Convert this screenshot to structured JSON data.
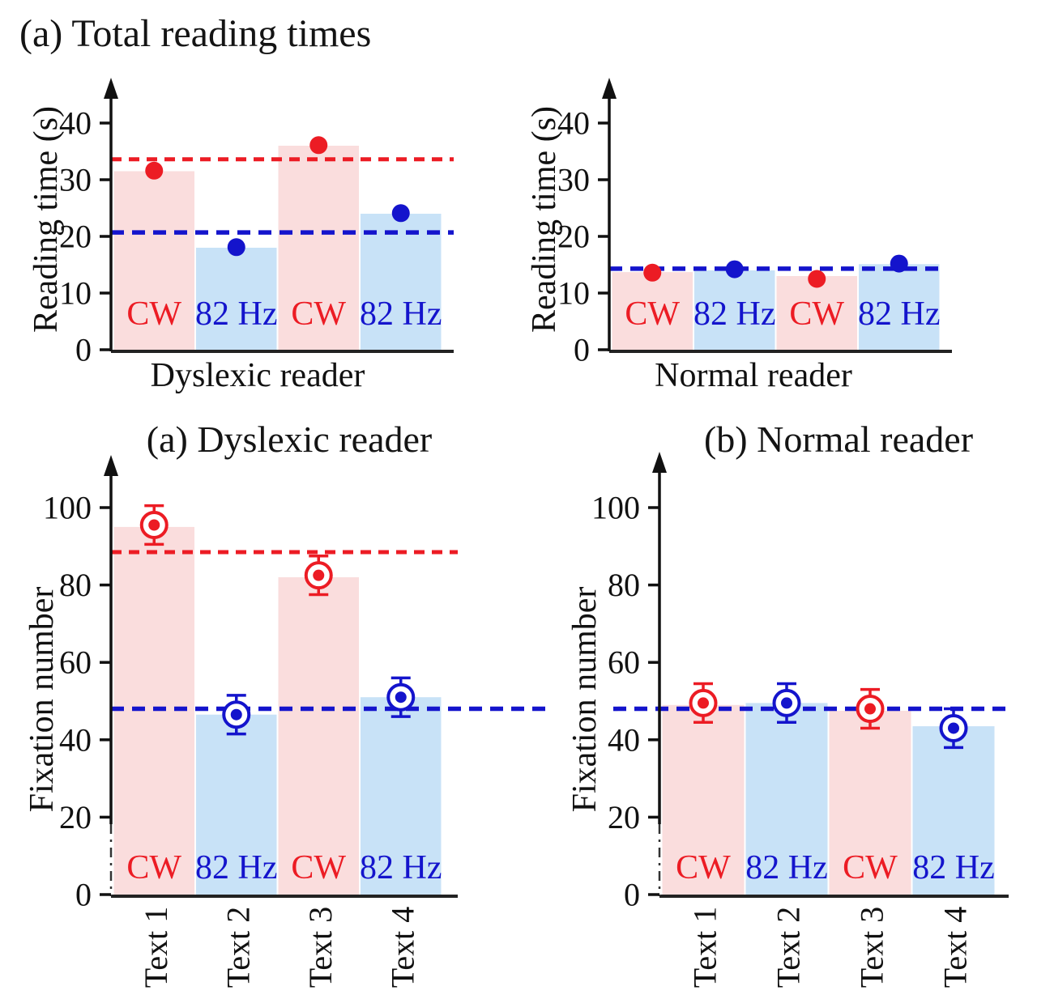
{
  "figure_title": "(a) Total reading times",
  "colors": {
    "red": "#ec1c24",
    "blue": "#1414cc",
    "pink_fill": "#fadddd",
    "blue_fill": "#c8e2f7",
    "axis": "#1a1a1a"
  },
  "chart_data": [
    {
      "id": "reading-time-dyslexic",
      "type": "bar",
      "title": "",
      "xlabel": "Dyslexic reader",
      "ylabel": "Reading time (s)",
      "ylim": [
        0,
        46
      ],
      "yticks": [
        0,
        10,
        20,
        30,
        40
      ],
      "categories": [
        "CW",
        "82 Hz",
        "CW",
        "82 Hz"
      ],
      "series_colors": [
        "red",
        "blue",
        "red",
        "blue"
      ],
      "bar_values": [
        31.5,
        18,
        36,
        24
      ],
      "point_values": [
        31.6,
        18.1,
        36.1,
        24.1
      ],
      "point_errors": null,
      "hlines": [
        {
          "value": 33.6,
          "color": "red"
        },
        {
          "value": 20.7,
          "color": "blue"
        }
      ]
    },
    {
      "id": "reading-time-normal",
      "type": "bar",
      "title": "",
      "xlabel": "Normal reader",
      "ylabel": "Reading time (s)",
      "ylim": [
        0,
        46
      ],
      "yticks": [
        0,
        10,
        20,
        30,
        40
      ],
      "categories": [
        "CW",
        "82 Hz",
        "CW",
        "82 Hz"
      ],
      "series_colors": [
        "red",
        "blue",
        "red",
        "blue"
      ],
      "bar_values": [
        13.7,
        14,
        13,
        15.1
      ],
      "point_values": [
        13.6,
        14.2,
        12.5,
        15.2
      ],
      "point_errors": null,
      "hlines": [
        {
          "value": 14.3,
          "color": "blue"
        }
      ]
    },
    {
      "id": "fixation-dyslexic",
      "type": "bar",
      "title": "(a) Dyslexic reader",
      "xlabel": "",
      "ylabel": "Fixation number",
      "ylim": [
        0,
        112
      ],
      "yticks": [
        0,
        20,
        40,
        60,
        80,
        100
      ],
      "categories": [
        "CW",
        "82 Hz",
        "CW",
        "82 Hz"
      ],
      "x_tick_labels": [
        "Text 1",
        "Text 2",
        "Text 3",
        "Text 4"
      ],
      "series_colors": [
        "red",
        "blue",
        "red",
        "blue"
      ],
      "bar_values": [
        95,
        46.5,
        82,
        51
      ],
      "point_values": [
        95.5,
        46.5,
        82.5,
        51
      ],
      "point_errors": [
        5,
        5,
        5,
        5
      ],
      "hlines": [
        {
          "value": 88.5,
          "color": "red"
        },
        {
          "value": 48,
          "color": "blue"
        }
      ]
    },
    {
      "id": "fixation-normal",
      "type": "bar",
      "title": "(b) Normal reader",
      "xlabel": "",
      "ylabel": "Fixation number",
      "ylim": [
        0,
        112
      ],
      "yticks": [
        0,
        20,
        40,
        60,
        80,
        100
      ],
      "categories": [
        "CW",
        "82 Hz",
        "CW",
        "82 Hz"
      ],
      "x_tick_labels": [
        "Text 1",
        "Text 2",
        "Text 3",
        "Text 4"
      ],
      "series_colors": [
        "red",
        "blue",
        "red",
        "blue"
      ],
      "bar_values": [
        49,
        49.5,
        47.5,
        43.5
      ],
      "point_values": [
        49.5,
        49.5,
        48,
        43
      ],
      "point_errors": [
        5,
        5,
        5,
        5
      ],
      "hlines": [
        {
          "value": 48,
          "color": "blue"
        }
      ]
    }
  ]
}
